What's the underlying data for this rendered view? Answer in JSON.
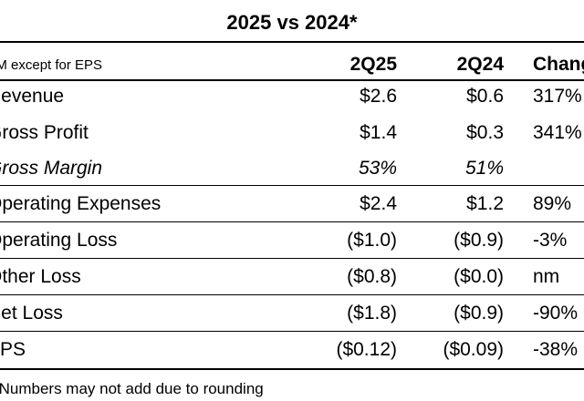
{
  "title": "2025 vs 2024*",
  "header": {
    "units": "$M except for EPS",
    "col1": "2Q25",
    "col2": "2Q24",
    "col3": "Change"
  },
  "rows": [
    {
      "label": "Revenue",
      "c1": "$2.6",
      "c2": "$0.6",
      "c3": "317%",
      "italic": false
    },
    {
      "label": "Gross Profit",
      "c1": "$1.4",
      "c2": "$0.3",
      "c3": "341%",
      "italic": false
    },
    {
      "label": "Gross Margin",
      "c1": "53%",
      "c2": "51%",
      "c3": "",
      "italic": true
    },
    {
      "label": "Operating Expenses",
      "c1": "$2.4",
      "c2": "$1.2",
      "c3": "89%",
      "italic": false
    },
    {
      "label": "Operating Loss",
      "c1": "($1.0)",
      "c2": "($0.9)",
      "c3": "-3%",
      "italic": false
    },
    {
      "label": "Other Loss",
      "c1": "($0.8)",
      "c2": "($0.0)",
      "c3": "nm",
      "italic": false
    },
    {
      "label": "Net Loss",
      "c1": "($1.8)",
      "c2": "($0.9)",
      "c3": "-90%",
      "italic": false
    },
    {
      "label": "EPS",
      "c1": "($0.12)",
      "c2": "($0.09)",
      "c3": "-38%",
      "italic": false
    }
  ],
  "footnote": "*Numbers may not add due to rounding"
}
